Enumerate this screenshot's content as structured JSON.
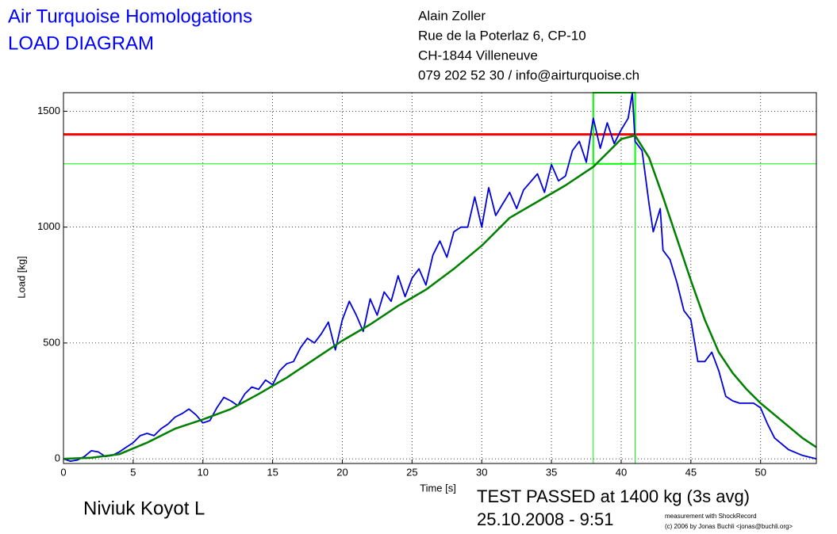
{
  "header": {
    "title": "Air Turquoise Homologations",
    "subtitle": "LOAD DIAGRAM",
    "address": [
      "Alain Zoller",
      "Rue de la Poterlaz 6, CP-10",
      "CH-1844 Villeneuve",
      "079 202 52 30 / info@airturquoise.ch"
    ]
  },
  "chart_data": {
    "type": "line",
    "xlabel": "Time [s]",
    "ylabel": "Load [kg]",
    "xlim": [
      0,
      54
    ],
    "ylim": [
      -20,
      1580
    ],
    "xticks": [
      0,
      5,
      10,
      15,
      20,
      25,
      30,
      35,
      40,
      45,
      50
    ],
    "yticks": [
      0,
      500,
      1000,
      1500
    ],
    "grid": true,
    "series": [
      {
        "color": "#0000dd",
        "x": [
          0,
          0.5,
          1,
          1.5,
          2,
          2.5,
          3,
          3.5,
          4,
          4.5,
          5,
          5.5,
          6,
          6.5,
          7,
          7.5,
          8,
          8.5,
          9,
          9.5,
          10,
          10.5,
          11,
          11.5,
          12,
          12.5,
          13,
          13.5,
          14,
          14.5,
          15,
          15.5,
          16,
          16.5,
          17,
          17.5,
          18,
          18.5,
          19,
          19.5,
          20,
          20.5,
          21,
          21.5,
          22,
          22.5,
          23,
          23.5,
          24,
          24.5,
          25,
          25.5,
          26,
          26.5,
          27,
          27.5,
          28,
          28.5,
          29,
          29.5,
          30,
          30.5,
          31,
          31.5,
          32,
          32.5,
          33,
          34,
          34.5,
          35,
          35.5,
          36,
          36.5,
          37,
          37.5,
          38,
          38.5,
          39,
          39.5,
          40,
          40.5,
          40.8,
          41,
          41.5,
          42,
          42.3,
          42.8,
          43,
          43.5,
          44,
          44.5,
          45,
          45.5,
          46,
          46.5,
          47,
          47.5,
          48,
          48.5,
          49,
          49.5,
          50,
          50.5,
          51,
          52,
          53,
          54
        ],
        "values": [
          0,
          -10,
          -5,
          10,
          35,
          30,
          10,
          15,
          30,
          50,
          70,
          100,
          110,
          100,
          130,
          150,
          180,
          195,
          215,
          190,
          155,
          165,
          220,
          265,
          250,
          230,
          280,
          310,
          300,
          340,
          320,
          380,
          410,
          420,
          480,
          520,
          500,
          540,
          590,
          470,
          600,
          680,
          620,
          550,
          690,
          620,
          720,
          680,
          790,
          700,
          780,
          820,
          750,
          880,
          940,
          870,
          980,
          1000,
          1000,
          1130,
          1000,
          1170,
          1050,
          1100,
          1150,
          1080,
          1160,
          1230,
          1150,
          1270,
          1200,
          1220,
          1330,
          1370,
          1280,
          1470,
          1340,
          1450,
          1360,
          1420,
          1470,
          1580,
          1370,
          1330,
          1100,
          980,
          1080,
          900,
          860,
          760,
          640,
          600,
          420,
          420,
          460,
          380,
          270,
          250,
          240,
          240,
          240,
          220,
          150,
          90,
          40,
          15,
          0
        ]
      },
      {
        "color": "#008000",
        "x": [
          0,
          2,
          4,
          6,
          8,
          10,
          12,
          14,
          16,
          18,
          20,
          22,
          24,
          26,
          28,
          30,
          32,
          34,
          36,
          38,
          39,
          40,
          41,
          42,
          43,
          44,
          45,
          46,
          47,
          48,
          49,
          50,
          51,
          52,
          53,
          54
        ],
        "values": [
          0,
          5,
          20,
          70,
          130,
          170,
          215,
          280,
          350,
          430,
          510,
          580,
          660,
          730,
          820,
          920,
          1040,
          1110,
          1180,
          1260,
          1320,
          1380,
          1395,
          1300,
          1130,
          950,
          770,
          600,
          460,
          370,
          300,
          240,
          190,
          140,
          90,
          50
        ]
      }
    ],
    "hlines": [
      {
        "value": 1400,
        "color": "#ff0000"
      },
      {
        "value": 1273,
        "color": "#00ff00"
      }
    ],
    "vlines": [
      {
        "value": 38,
        "color": "#00ff00"
      },
      {
        "value": 41,
        "color": "#00ff00"
      }
    ]
  },
  "footer": {
    "glider": "Niviuk Koyot L",
    "result": "TEST PASSED at 1400 kg (3s avg)",
    "date": "25.10.2008 - 9:51",
    "credit1": "measurement with ShockRecord",
    "credit2": "(c) 2006 by Jonas Buchli <jonas@buchli.org>"
  }
}
